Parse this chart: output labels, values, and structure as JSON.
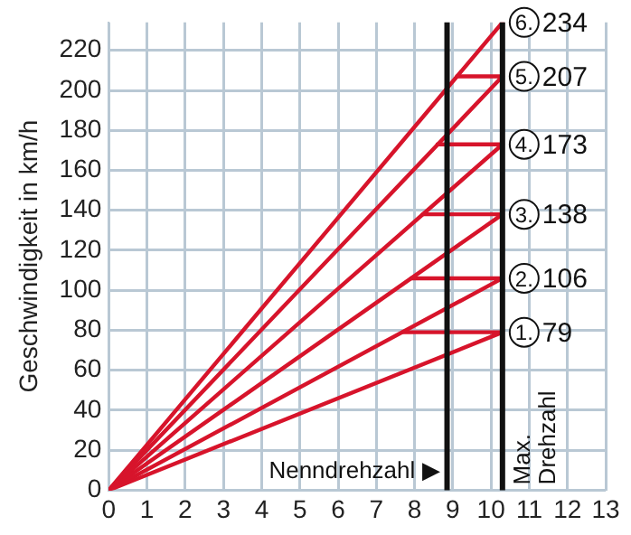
{
  "chart_data": {
    "type": "line",
    "ylabel": "Geschwindigkeit in km/h",
    "xlim": [
      0,
      13
    ],
    "xticks": [
      0,
      1,
      2,
      3,
      4,
      5,
      6,
      7,
      8,
      9,
      10,
      11,
      12,
      13
    ],
    "ylim": [
      0,
      234
    ],
    "yticks": [
      0,
      20,
      40,
      60,
      80,
      100,
      120,
      140,
      160,
      180,
      200,
      220
    ],
    "grid": true,
    "legend": false,
    "marker": "none",
    "line_style": "solid",
    "series": [
      {
        "color": "#d7142b",
        "x": [
          0,
          10.3,
          7.68
        ],
        "values": [
          0,
          79,
          79
        ]
      },
      {
        "color": "#d7142b",
        "x": [
          0,
          10.3,
          7.91
        ],
        "values": [
          0,
          106,
          106
        ]
      },
      {
        "color": "#d7142b",
        "x": [
          0,
          10.3,
          8.21
        ],
        "values": [
          0,
          138,
          138
        ]
      },
      {
        "color": "#d7142b",
        "x": [
          0,
          10.3,
          8.6
        ],
        "values": [
          0,
          173,
          173
        ]
      },
      {
        "color": "#d7142b",
        "x": [
          0,
          10.3,
          9.11
        ],
        "values": [
          0,
          207,
          207
        ]
      },
      {
        "color": "#d7142b",
        "x": [
          0,
          10.3
        ],
        "values": [
          0,
          234
        ]
      }
    ],
    "ref_lines": [
      {
        "axis": "x",
        "value": 8.85,
        "label": "Nenndrehzahl ▶",
        "color": "#111111"
      },
      {
        "axis": "x",
        "value": 10.3,
        "label": "Max. Drehzahl",
        "color": "#111111"
      }
    ],
    "annotations": [
      "1. 79",
      "2. 106",
      "3. 138",
      "4. 173",
      "5. 207",
      "6. 234"
    ]
  }
}
